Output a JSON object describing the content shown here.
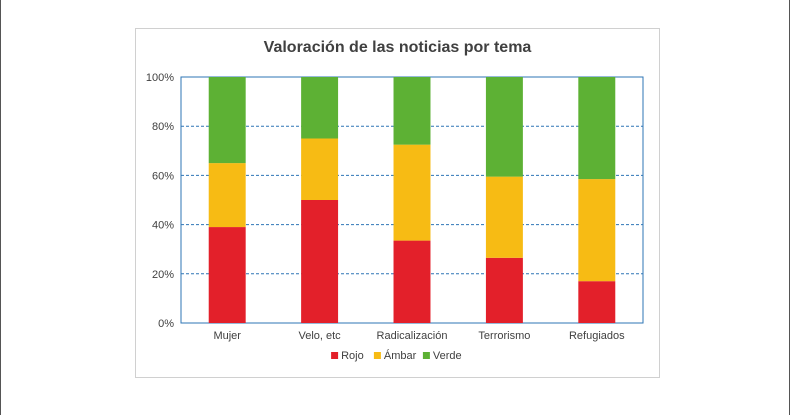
{
  "chart_data": {
    "type": "bar",
    "stacked": true,
    "title": "Valoración de las noticias por tema",
    "categories": [
      "Mujer",
      "Velo, etc",
      "Radicalización",
      "Terrorismo",
      "Refugiados"
    ],
    "series": [
      {
        "name": "Rojo",
        "color": "#e3202a",
        "values": [
          39,
          50,
          33.5,
          26.5,
          17
        ]
      },
      {
        "name": "Ámbar",
        "color": "#f7bb14",
        "values": [
          26,
          25,
          39,
          33,
          41.5
        ]
      },
      {
        "name": "Verde",
        "color": "#5db134",
        "values": [
          35,
          25,
          27.5,
          40.5,
          41.5
        ]
      }
    ],
    "yticks": [
      "0%",
      "20%",
      "40%",
      "60%",
      "80%",
      "100%"
    ],
    "ylim": [
      0,
      100
    ],
    "grid": true,
    "legend": "bottom"
  }
}
